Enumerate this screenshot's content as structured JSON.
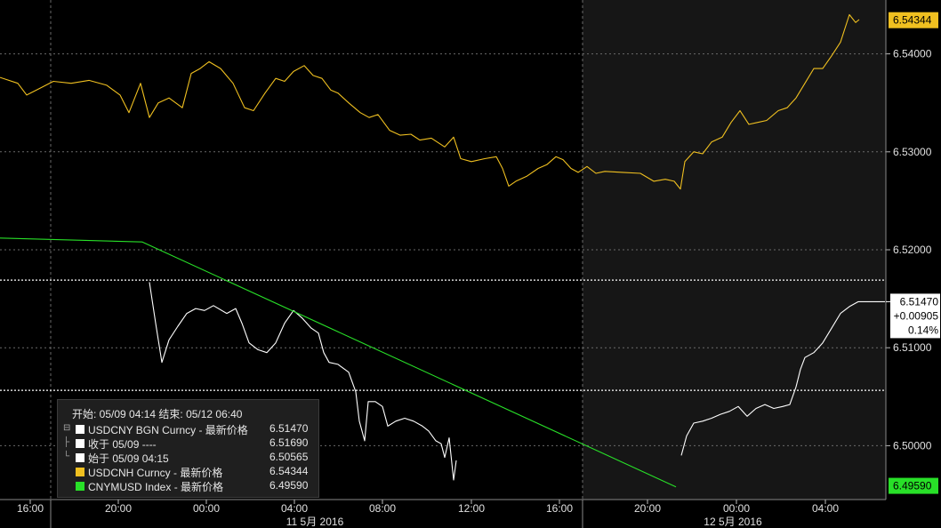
{
  "chart_data": {
    "type": "line",
    "x_ticks": [
      "16:00",
      "20:00",
      "00:00",
      "04:00",
      "08:00",
      "12:00",
      "16:00",
      "20:00",
      "00:00",
      "04:00"
    ],
    "date_labels": [
      "11 5月 2016",
      "12 5月 2016"
    ],
    "y_ticks": [
      "6.54000",
      "6.53000",
      "6.52000",
      "6.51000",
      "6.50000"
    ],
    "ylim": [
      6.4945,
      6.5455
    ],
    "grid": true,
    "reference_lines": [
      6.5169,
      6.50565
    ],
    "series": [
      {
        "name": "USDCNH Curncy",
        "color": "#f0c020",
        "last": "6.54344",
        "points": [
          [
            0,
            6.5376
          ],
          [
            20,
            6.537
          ],
          [
            30,
            6.5358
          ],
          [
            45,
            6.5365
          ],
          [
            60,
            6.5372
          ],
          [
            80,
            6.537
          ],
          [
            100,
            6.5373
          ],
          [
            120,
            6.5368
          ],
          [
            135,
            6.5358
          ],
          [
            145,
            6.534
          ],
          [
            158,
            6.537
          ],
          [
            168,
            6.5335
          ],
          [
            178,
            6.535
          ],
          [
            190,
            6.5355
          ],
          [
            205,
            6.5345
          ],
          [
            215,
            6.538
          ],
          [
            225,
            6.5385
          ],
          [
            235,
            6.5392
          ],
          [
            248,
            6.5385
          ],
          [
            262,
            6.537
          ],
          [
            275,
            6.5345
          ],
          [
            285,
            6.5342
          ],
          [
            298,
            6.536
          ],
          [
            310,
            6.5375
          ],
          [
            320,
            6.5372
          ],
          [
            330,
            6.5382
          ],
          [
            342,
            6.5388
          ],
          [
            352,
            6.5378
          ],
          [
            362,
            6.5375
          ],
          [
            372,
            6.5363
          ],
          [
            380,
            6.536
          ],
          [
            392,
            6.535
          ],
          [
            405,
            6.534
          ],
          [
            415,
            6.5335
          ],
          [
            425,
            6.5338
          ],
          [
            438,
            6.5322
          ],
          [
            450,
            6.5317
          ],
          [
            462,
            6.5318
          ],
          [
            472,
            6.5312
          ],
          [
            485,
            6.5314
          ],
          [
            500,
            6.5305
          ],
          [
            510,
            6.5315
          ],
          [
            518,
            6.5293
          ],
          [
            530,
            6.529
          ],
          [
            545,
            6.5293
          ],
          [
            558,
            6.5295
          ],
          [
            565,
            6.5283
          ],
          [
            572,
            6.5265
          ],
          [
            580,
            6.527
          ],
          [
            592,
            6.5275
          ],
          [
            605,
            6.5283
          ],
          [
            615,
            6.5287
          ],
          [
            625,
            6.5295
          ],
          [
            633,
            6.5292
          ],
          [
            642,
            6.5283
          ],
          [
            650,
            6.5279
          ],
          [
            660,
            6.5285
          ],
          [
            670,
            6.5278
          ],
          [
            680,
            6.528
          ],
          [
            700,
            6.5279
          ],
          [
            720,
            6.5278
          ],
          [
            735,
            6.527
          ],
          [
            748,
            6.5272
          ],
          [
            758,
            6.527
          ],
          [
            765,
            6.5262
          ],
          [
            770,
            6.529
          ],
          [
            780,
            6.53
          ],
          [
            790,
            6.5298
          ],
          [
            800,
            6.531
          ],
          [
            812,
            6.5315
          ],
          [
            822,
            6.533
          ],
          [
            832,
            6.5342
          ],
          [
            842,
            6.5328
          ],
          [
            852,
            6.533
          ],
          [
            862,
            6.5332
          ],
          [
            875,
            6.5342
          ],
          [
            885,
            6.5345
          ],
          [
            895,
            6.5355
          ],
          [
            905,
            6.537
          ],
          [
            915,
            6.5385
          ],
          [
            925,
            6.5385
          ],
          [
            935,
            6.5398
          ],
          [
            945,
            6.5412
          ],
          [
            955,
            6.544
          ],
          [
            962,
            6.5432
          ],
          [
            966,
            6.5435
          ]
        ]
      },
      {
        "name": "USDCNY BGN Curncy",
        "color": "#ffffff",
        "last": "6.51470",
        "change": "+0.00905",
        "change_pct": "0.14%",
        "segments": [
          [
            [
              168,
              6.5167
            ],
            [
              172,
              6.5143
            ],
            [
              175,
              6.5125
            ],
            [
              182,
              6.5085
            ],
            [
              190,
              6.5108
            ],
            [
              200,
              6.5122
            ],
            [
              210,
              6.5135
            ],
            [
              220,
              6.514
            ],
            [
              230,
              6.5138
            ],
            [
              240,
              6.5143
            ],
            [
              255,
              6.5135
            ],
            [
              265,
              6.514
            ],
            [
              272,
              6.5125
            ],
            [
              280,
              6.5105
            ],
            [
              290,
              6.5098
            ],
            [
              300,
              6.5095
            ],
            [
              310,
              6.5105
            ],
            [
              320,
              6.5125
            ],
            [
              330,
              6.5138
            ],
            [
              340,
              6.513
            ],
            [
              350,
              6.512
            ],
            [
              358,
              6.5115
            ],
            [
              364,
              6.5095
            ],
            [
              370,
              6.5085
            ],
            [
              380,
              6.5083
            ],
            [
              392,
              6.5075
            ],
            [
              400,
              6.5055
            ],
            [
              404,
              6.5025
            ],
            [
              410,
              6.5005
            ],
            [
              414,
              6.5045
            ],
            [
              422,
              6.5045
            ],
            [
              430,
              6.504
            ],
            [
              436,
              6.502
            ],
            [
              445,
              6.5025
            ],
            [
              455,
              6.5028
            ],
            [
              465,
              6.5025
            ],
            [
              475,
              6.502
            ],
            [
              482,
              6.5015
            ],
            [
              490,
              6.5005
            ],
            [
              496,
              6.5002
            ],
            [
              500,
              6.4988
            ],
            [
              505,
              6.5008
            ],
            [
              510,
              6.4965
            ],
            [
              513,
              6.4985
            ]
          ],
          [
            [
              766,
              6.499
            ],
            [
              772,
              6.501
            ],
            [
              780,
              6.5023
            ],
            [
              790,
              6.5025
            ],
            [
              800,
              6.5028
            ],
            [
              810,
              6.5032
            ],
            [
              820,
              6.5035
            ],
            [
              830,
              6.504
            ],
            [
              840,
              6.503
            ],
            [
              850,
              6.5038
            ],
            [
              860,
              6.5042
            ],
            [
              870,
              6.5038
            ],
            [
              880,
              6.504
            ],
            [
              888,
              6.5042
            ],
            [
              895,
              6.506
            ],
            [
              900,
              6.5078
            ],
            [
              905,
              6.509
            ],
            [
              915,
              6.5095
            ],
            [
              925,
              6.5105
            ],
            [
              935,
              6.512
            ],
            [
              945,
              6.5135
            ],
            [
              955,
              6.5142
            ],
            [
              965,
              6.5147
            ],
            [
              995,
              6.5147
            ]
          ]
        ]
      },
      {
        "name": "CNYMUSD Index",
        "color": "#28e028",
        "last": "6.49590",
        "points": [
          [
            0,
            6.5212
          ],
          [
            160,
            6.5208
          ],
          [
            760,
            6.4958
          ]
        ]
      }
    ],
    "legend": {
      "header": "开始: 05/09 04:14 结束: 05/12 06:40",
      "rows": [
        {
          "label": "USDCNY BGN Curncy - 最新价格",
          "value": "6.51470",
          "color": "#ffffff",
          "tree": "⊟"
        },
        {
          "label": "收于 05/09 ----",
          "value": "6.51690",
          "color": "#ffffff",
          "tree": "├"
        },
        {
          "label": "始于 05/09 04:15",
          "value": "6.50565",
          "color": "#ffffff",
          "tree": "└"
        },
        {
          "label": "USDCNH Curncy - 最新价格",
          "value": "6.54344",
          "color": "#f0c020",
          "tree": ""
        },
        {
          "label": "CNYMUSD Index - 最新价格",
          "value": "6.49590",
          "color": "#28e028",
          "tree": ""
        }
      ]
    }
  }
}
